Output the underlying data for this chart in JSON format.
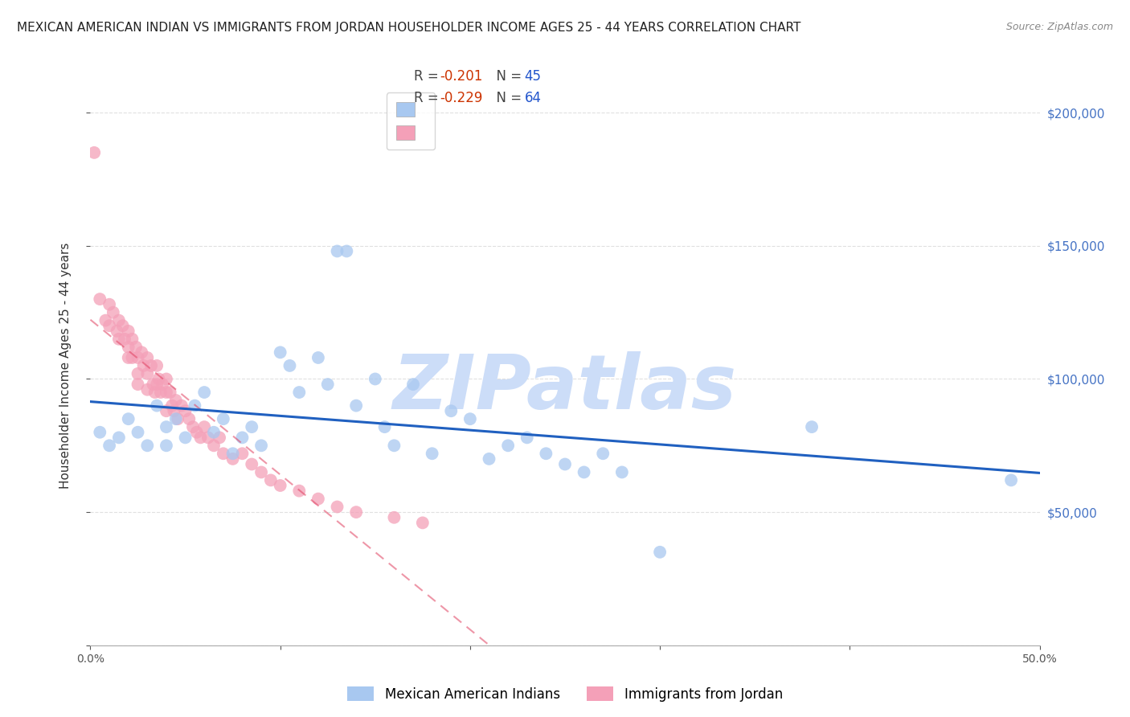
{
  "title": "MEXICAN AMERICAN INDIAN VS IMMIGRANTS FROM JORDAN HOUSEHOLDER INCOME AGES 25 - 44 YEARS CORRELATION CHART",
  "source": "Source: ZipAtlas.com",
  "ylabel": "Householder Income Ages 25 - 44 years",
  "xlim": [
    0.0,
    0.5
  ],
  "ylim": [
    0,
    210000
  ],
  "yticks": [
    0,
    50000,
    100000,
    150000,
    200000
  ],
  "ytick_labels": [
    "",
    "$50,000",
    "$100,000",
    "$150,000",
    "$200,000"
  ],
  "xticks": [
    0.0,
    0.1,
    0.2,
    0.3,
    0.4,
    0.5
  ],
  "xtick_labels": [
    "0.0%",
    "",
    "",
    "",
    "",
    "50.0%"
  ],
  "blue_label": "Mexican American Indians",
  "pink_label": "Immigrants from Jordan",
  "blue_R": -0.201,
  "blue_N": 45,
  "pink_R": -0.229,
  "pink_N": 64,
  "blue_color": "#a8c8f0",
  "pink_color": "#f4a0b8",
  "blue_line_color": "#2060c0",
  "pink_line_color": "#e04060",
  "watermark": "ZIPatlas",
  "watermark_color": "#ccddf8",
  "blue_scatter_x": [
    0.005,
    0.01,
    0.015,
    0.02,
    0.025,
    0.03,
    0.035,
    0.04,
    0.04,
    0.045,
    0.05,
    0.055,
    0.06,
    0.065,
    0.07,
    0.075,
    0.08,
    0.085,
    0.09,
    0.1,
    0.105,
    0.11,
    0.12,
    0.125,
    0.13,
    0.135,
    0.14,
    0.15,
    0.155,
    0.16,
    0.17,
    0.18,
    0.19,
    0.2,
    0.21,
    0.22,
    0.23,
    0.24,
    0.25,
    0.26,
    0.27,
    0.28,
    0.3,
    0.38,
    0.485
  ],
  "blue_scatter_y": [
    80000,
    75000,
    78000,
    85000,
    80000,
    75000,
    90000,
    82000,
    75000,
    85000,
    78000,
    90000,
    95000,
    80000,
    85000,
    72000,
    78000,
    82000,
    75000,
    110000,
    105000,
    95000,
    108000,
    98000,
    148000,
    148000,
    90000,
    100000,
    82000,
    75000,
    98000,
    72000,
    88000,
    85000,
    70000,
    75000,
    78000,
    72000,
    68000,
    65000,
    72000,
    65000,
    35000,
    82000,
    62000
  ],
  "pink_scatter_x": [
    0.002,
    0.005,
    0.008,
    0.01,
    0.01,
    0.012,
    0.014,
    0.015,
    0.015,
    0.017,
    0.018,
    0.02,
    0.02,
    0.02,
    0.022,
    0.022,
    0.024,
    0.025,
    0.025,
    0.025,
    0.027,
    0.028,
    0.03,
    0.03,
    0.03,
    0.032,
    0.033,
    0.034,
    0.035,
    0.035,
    0.036,
    0.037,
    0.038,
    0.04,
    0.04,
    0.04,
    0.042,
    0.043,
    0.044,
    0.045,
    0.046,
    0.048,
    0.05,
    0.052,
    0.054,
    0.056,
    0.058,
    0.06,
    0.062,
    0.065,
    0.068,
    0.07,
    0.075,
    0.08,
    0.085,
    0.09,
    0.095,
    0.1,
    0.11,
    0.12,
    0.13,
    0.14,
    0.16,
    0.175
  ],
  "pink_scatter_y": [
    185000,
    130000,
    122000,
    128000,
    120000,
    125000,
    118000,
    122000,
    115000,
    120000,
    115000,
    118000,
    112000,
    108000,
    115000,
    108000,
    112000,
    108000,
    102000,
    98000,
    110000,
    105000,
    108000,
    102000,
    96000,
    105000,
    98000,
    95000,
    105000,
    98000,
    100000,
    95000,
    98000,
    100000,
    95000,
    88000,
    95000,
    90000,
    88000,
    92000,
    85000,
    90000,
    88000,
    85000,
    82000,
    80000,
    78000,
    82000,
    78000,
    75000,
    78000,
    72000,
    70000,
    72000,
    68000,
    65000,
    62000,
    60000,
    58000,
    55000,
    52000,
    50000,
    48000,
    46000
  ],
  "background_color": "#ffffff",
  "grid_color": "#e0e0e0",
  "title_fontsize": 11,
  "axis_label_fontsize": 11,
  "tick_fontsize": 10,
  "right_ytick_color": "#4472c4",
  "right_ytick_fontsize": 11
}
